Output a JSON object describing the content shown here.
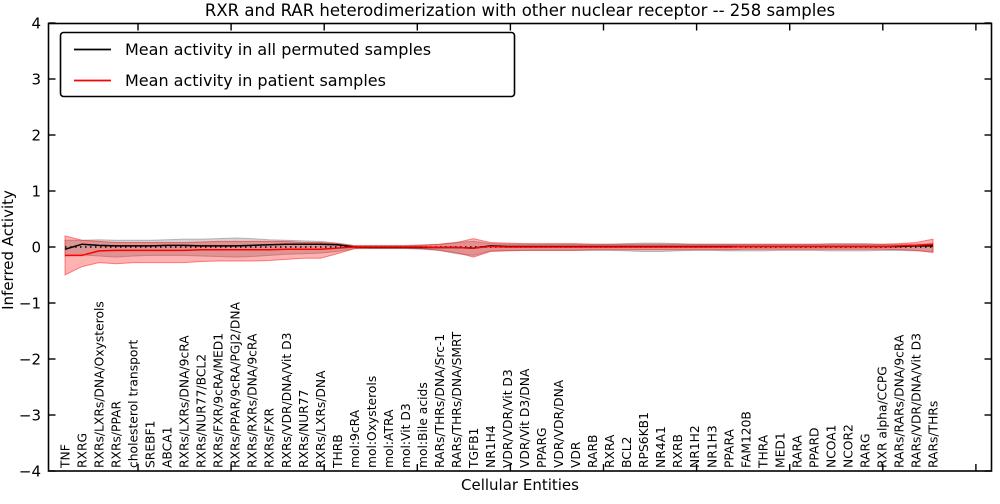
{
  "title": "RXR and RAR heterodimerization with other nuclear receptor -- 258 samples",
  "legend": {
    "position": "upper left",
    "items": [
      {
        "label": "Mean activity in all permuted samples",
        "color": "#000000"
      },
      {
        "label": "Mean activity in patient samples",
        "color": "#ff0000"
      }
    ]
  },
  "chart_data": {
    "type": "line",
    "title": "RXR and RAR heterodimerization with other nuclear receptor -- 258 samples",
    "xlabel": "Cellular Entities",
    "ylabel": "Inferred Activity",
    "ylim": [
      -4,
      4
    ],
    "yticks": [
      4,
      3,
      2,
      1,
      0,
      -1,
      -2,
      -3,
      -4
    ],
    "ytick_labels": [
      "4",
      "3",
      "2",
      "1",
      "0",
      "−1",
      "−2",
      "−3",
      "−4"
    ],
    "grid": false,
    "legend_position": "upper left",
    "categories": [
      "TNF",
      "RXRG",
      "RXRs/LXRs/DNA/Oxysterols",
      "RXRs/PPAR",
      "cholesterol transport",
      "SREBF1",
      "ABCA1",
      "RXRs/LXRs/DNA/9cRA",
      "RXRs/NUR77/BCL2",
      "RXRs/FXR/9cRA/MED1",
      "RXRs/PPAR/9cRA/PGJ2/DNA",
      "RXRs/RXRs/DNA/9cRA",
      "RXRs/FXR",
      "RXRs/VDR/DNA/Vit D3",
      "RXRs/NUR77",
      "RXRs/LXRs/DNA",
      "THRB",
      "mol:9cRA",
      "mol:Oxysterols",
      "mol:ATRA",
      "mol:Vit D3",
      "mol:Bile acids",
      "RARs/THRs/DNA/Src-1",
      "RARs/THRs/DNA/SMRT",
      "TGFB1",
      "NR1H4",
      "VDR/VDR/Vit D3",
      "VDR/Vit D3/DNA",
      "PPARG",
      "VDR/VDR/DNA",
      "VDR",
      "RARB",
      "RXRA",
      "BCL2",
      "RPS6KB1",
      "NR4A1",
      "RXRB",
      "NR1H2",
      "NR1H3",
      "PPARA",
      "FAM120B",
      "THRA",
      "MED1",
      "RARA",
      "PPARD",
      "NCOA1",
      "NCOR2",
      "RARG",
      "RXR alpha/CCPG",
      "RARs/RARs/DNA/9cRA",
      "RARs/VDR/DNA/Vit D3",
      "RARs/THRs"
    ],
    "reference_line": {
      "y": 0,
      "style": "dotted",
      "color": "#000000"
    },
    "series": [
      {
        "name": "Mean activity in all permuted samples",
        "color": "#000000",
        "style": "solid",
        "values": [
          -0.04,
          0.05,
          0.03,
          0.02,
          0.02,
          0.02,
          0.03,
          0.03,
          0.02,
          0.02,
          0.02,
          0.03,
          0.04,
          0.05,
          0.05,
          0.05,
          0.04,
          0.0,
          -0.01,
          -0.01,
          -0.01,
          -0.01,
          -0.01,
          -0.01,
          -0.02,
          0.02,
          0.01,
          0.01,
          0.01,
          0.01,
          0.01,
          0.01,
          0.01,
          0.01,
          0.01,
          0.01,
          0.01,
          0.01,
          0.01,
          0.01,
          0.01,
          0.01,
          0.01,
          0.01,
          0.01,
          0.01,
          0.01,
          0.01,
          0.01,
          0.01,
          0.02,
          0.02
        ]
      },
      {
        "name": "Mean activity in patient samples",
        "color": "#ff0000",
        "style": "solid",
        "values": [
          -0.15,
          -0.15,
          -0.07,
          -0.06,
          -0.06,
          -0.06,
          -0.06,
          -0.06,
          -0.05,
          -0.05,
          -0.05,
          -0.05,
          -0.05,
          -0.04,
          -0.04,
          -0.04,
          -0.02,
          0.0,
          0.0,
          0.0,
          0.0,
          0.0,
          -0.01,
          -0.01,
          -0.02,
          0.01,
          0.0,
          0.0,
          0.0,
          0.0,
          0.0,
          0.0,
          0.0,
          0.0,
          0.0,
          0.0,
          0.0,
          0.0,
          0.0,
          0.0,
          0.01,
          0.01,
          0.01,
          0.01,
          0.01,
          0.01,
          0.01,
          0.01,
          0.01,
          0.02,
          0.03,
          0.05
        ]
      }
    ],
    "bands": [
      {
        "name": "permuted-std-band",
        "color": "#808080",
        "opacity": 0.35,
        "upper": [
          0.12,
          0.12,
          0.13,
          0.12,
          0.12,
          0.12,
          0.13,
          0.14,
          0.14,
          0.15,
          0.16,
          0.15,
          0.13,
          0.12,
          0.11,
          0.1,
          0.07,
          0.03,
          0.03,
          0.03,
          0.03,
          0.04,
          0.05,
          0.08,
          0.1,
          0.06,
          0.05,
          0.05,
          0.05,
          0.05,
          0.05,
          0.05,
          0.05,
          0.06,
          0.07,
          0.07,
          0.06,
          0.05,
          0.05,
          0.05,
          0.05,
          0.05,
          0.05,
          0.05,
          0.05,
          0.06,
          0.06,
          0.06,
          0.05,
          0.05,
          0.05,
          0.06
        ],
        "lower": [
          -0.16,
          -0.14,
          -0.16,
          -0.18,
          -0.16,
          -0.15,
          -0.15,
          -0.15,
          -0.16,
          -0.17,
          -0.18,
          -0.17,
          -0.15,
          -0.13,
          -0.12,
          -0.11,
          -0.08,
          -0.03,
          -0.03,
          -0.03,
          -0.03,
          -0.04,
          -0.06,
          -0.12,
          -0.15,
          -0.07,
          -0.06,
          -0.06,
          -0.06,
          -0.06,
          -0.06,
          -0.06,
          -0.06,
          -0.07,
          -0.08,
          -0.08,
          -0.07,
          -0.06,
          -0.06,
          -0.07,
          -0.07,
          -0.07,
          -0.06,
          -0.06,
          -0.06,
          -0.07,
          -0.07,
          -0.07,
          -0.06,
          -0.06,
          -0.07,
          -0.08
        ]
      },
      {
        "name": "patient-std-band",
        "color": "#ff0000",
        "opacity": 0.3,
        "upper": [
          0.2,
          0.12,
          0.1,
          0.08,
          0.08,
          0.08,
          0.08,
          0.08,
          0.09,
          0.1,
          0.1,
          0.1,
          0.1,
          0.1,
          0.08,
          0.08,
          0.06,
          0.02,
          0.02,
          0.02,
          0.02,
          0.03,
          0.05,
          0.08,
          0.15,
          0.08,
          0.07,
          0.06,
          0.06,
          0.06,
          0.06,
          0.05,
          0.05,
          0.05,
          0.05,
          0.05,
          0.05,
          0.05,
          0.05,
          0.05,
          0.05,
          0.05,
          0.05,
          0.05,
          0.05,
          0.05,
          0.05,
          0.05,
          0.05,
          0.06,
          0.08,
          0.14
        ],
        "lower": [
          -0.5,
          -0.35,
          -0.28,
          -0.3,
          -0.28,
          -0.28,
          -0.28,
          -0.28,
          -0.26,
          -0.25,
          -0.25,
          -0.25,
          -0.24,
          -0.22,
          -0.2,
          -0.2,
          -0.12,
          -0.03,
          -0.02,
          -0.02,
          -0.02,
          -0.03,
          -0.06,
          -0.1,
          -0.18,
          -0.08,
          -0.07,
          -0.06,
          -0.06,
          -0.06,
          -0.06,
          -0.05,
          -0.05,
          -0.05,
          -0.05,
          -0.05,
          -0.05,
          -0.05,
          -0.05,
          -0.05,
          -0.04,
          -0.04,
          -0.04,
          -0.04,
          -0.04,
          -0.04,
          -0.04,
          -0.04,
          -0.04,
          -0.05,
          -0.06,
          -0.1
        ]
      }
    ]
  }
}
